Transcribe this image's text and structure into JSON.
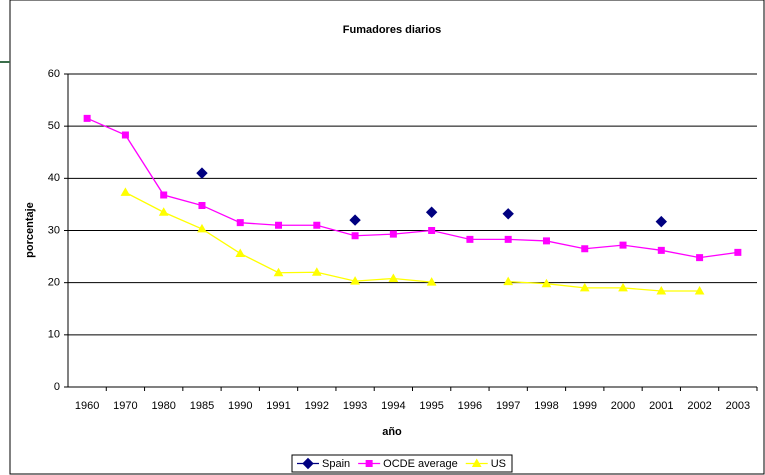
{
  "chart_data": {
    "type": "line",
    "title": "Fumadores diarios",
    "x_label": "año",
    "y_label": "porcentaje",
    "categories": [
      "1960",
      "1970",
      "1980",
      "1985",
      "1990",
      "1991",
      "1992",
      "1993",
      "1994",
      "1995",
      "1996",
      "1997",
      "1998",
      "1999",
      "2000",
      "2001",
      "2002",
      "2003"
    ],
    "series": [
      {
        "name": "Spain",
        "color": "#000080",
        "marker": "diamond",
        "show_line": false,
        "values": [
          null,
          null,
          null,
          41,
          null,
          null,
          null,
          32,
          null,
          33.5,
          null,
          33.2,
          null,
          null,
          null,
          31.7,
          null,
          null
        ]
      },
      {
        "name": "OCDE average",
        "color": "#ff00ff",
        "marker": "square",
        "show_line": true,
        "values": [
          51.5,
          48.3,
          36.8,
          34.8,
          31.5,
          31,
          31,
          29,
          29.3,
          30,
          28.3,
          28.3,
          28,
          26.5,
          27.2,
          26.2,
          24.8,
          25.8
        ]
      },
      {
        "name": "US",
        "color": "#ffff00",
        "marker": "triangle",
        "show_line": true,
        "values": [
          null,
          37.3,
          33.5,
          30.3,
          25.6,
          21.9,
          22,
          20.3,
          20.8,
          20.1,
          null,
          20.2,
          19.8,
          19,
          19,
          18.4,
          18.4,
          null
        ]
      }
    ],
    "ylim": [
      0,
      60
    ],
    "yticks": [
      0,
      10,
      20,
      30,
      40,
      50,
      60
    ],
    "grid": true,
    "legend": "bottom"
  }
}
